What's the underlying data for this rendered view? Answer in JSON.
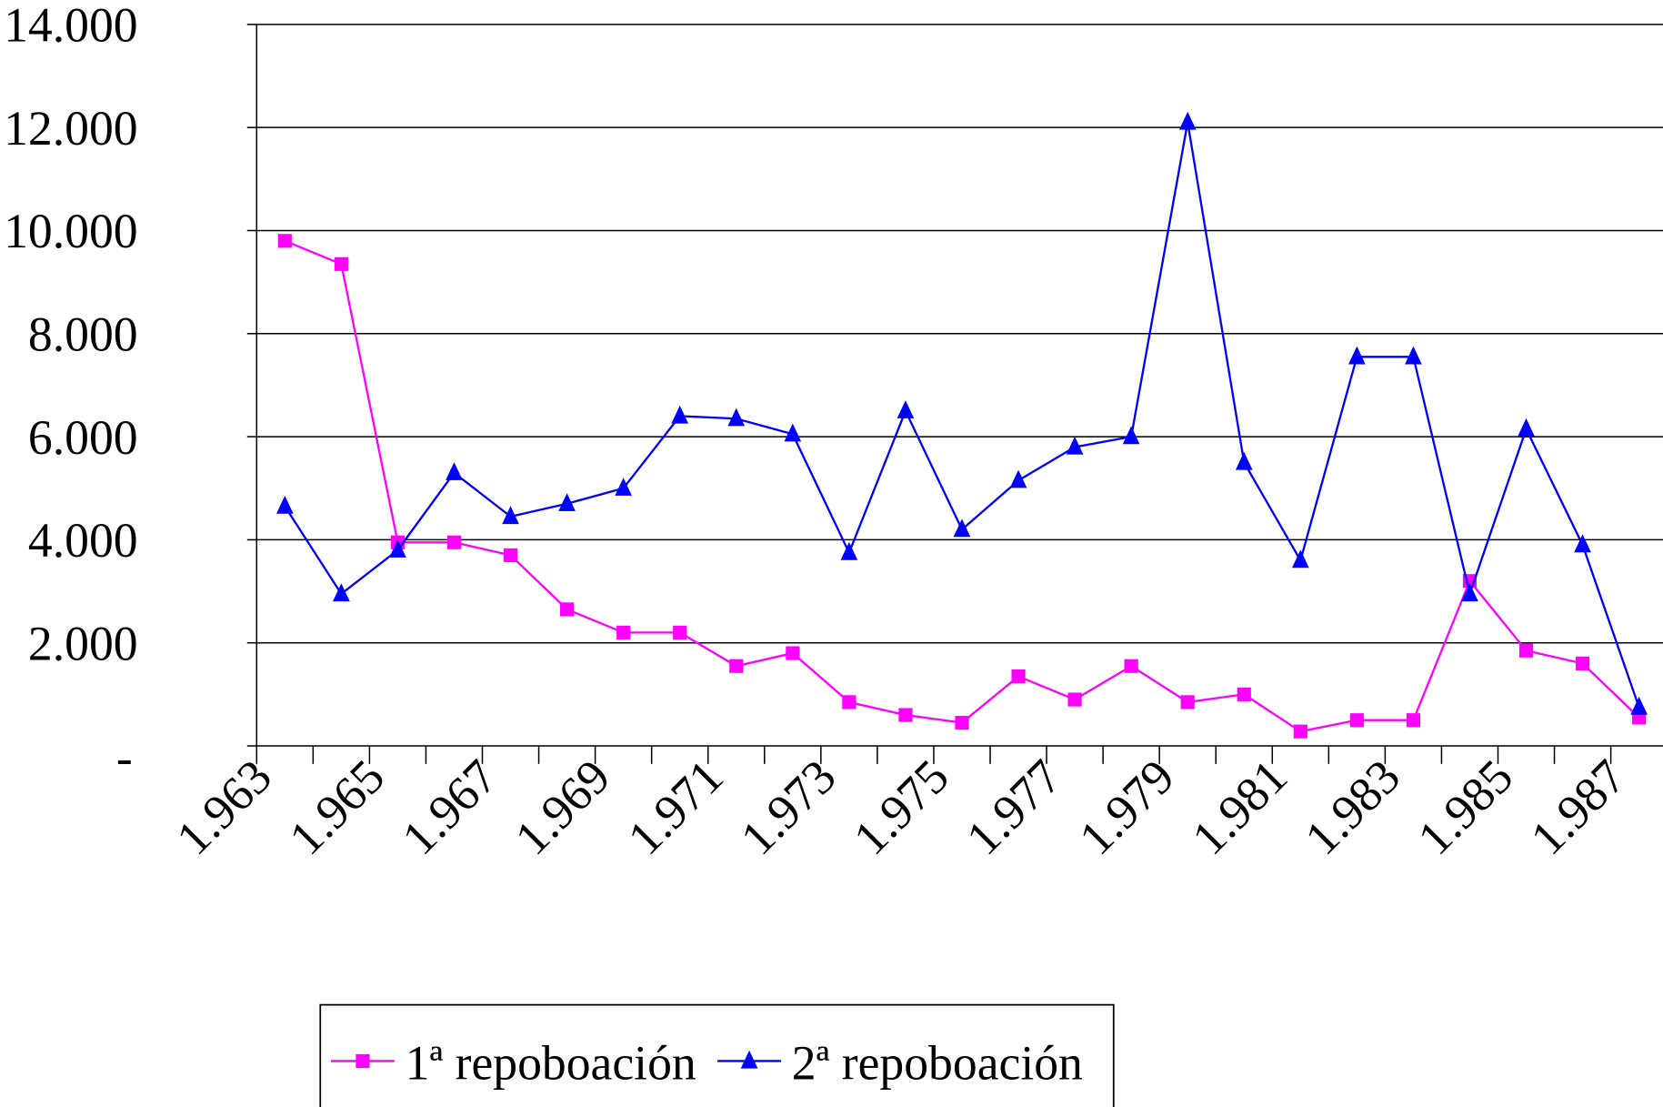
{
  "chart_data": {
    "type": "line",
    "categories": [
      "1.963",
      null,
      "1.965",
      null,
      "1.967",
      null,
      "1.969",
      null,
      "1.971",
      null,
      "1.973",
      null,
      "1.975",
      null,
      "1.977",
      null,
      "1.979",
      null,
      "1.981",
      null,
      "1.983",
      null,
      "1.985",
      null,
      "1.987"
    ],
    "series": [
      {
        "name": "1ª repoboación",
        "color": "#ff00ff",
        "marker": "square",
        "values": [
          9800,
          9350,
          3950,
          3950,
          3700,
          2650,
          2200,
          2200,
          1550,
          1800,
          850,
          600,
          450,
          1350,
          900,
          1550,
          850,
          1000,
          280,
          500,
          500,
          3200,
          1850,
          1600,
          550
        ]
      },
      {
        "name": "2ª repoboación",
        "color": "#0000ff",
        "marker": "triangle",
        "values": [
          4650,
          2950,
          3800,
          5300,
          4450,
          4700,
          5000,
          6400,
          6350,
          6050,
          3750,
          6500,
          4200,
          5150,
          5800,
          6000,
          12100,
          5500,
          3600,
          7550,
          7550,
          2950,
          6150,
          3900,
          750
        ]
      }
    ],
    "ylim": [
      0,
      14000
    ],
    "yticks": [
      {
        "value": 0,
        "label": "-"
      },
      {
        "value": 2000,
        "label": "2.000"
      },
      {
        "value": 4000,
        "label": "4.000"
      },
      {
        "value": 6000,
        "label": "6.000"
      },
      {
        "value": 8000,
        "label": "8.000"
      },
      {
        "value": 10000,
        "label": "10.000"
      },
      {
        "value": 12000,
        "label": "12.000"
      },
      {
        "value": 14000,
        "label": "14.000"
      }
    ],
    "grid": true,
    "legend": "bottom"
  }
}
